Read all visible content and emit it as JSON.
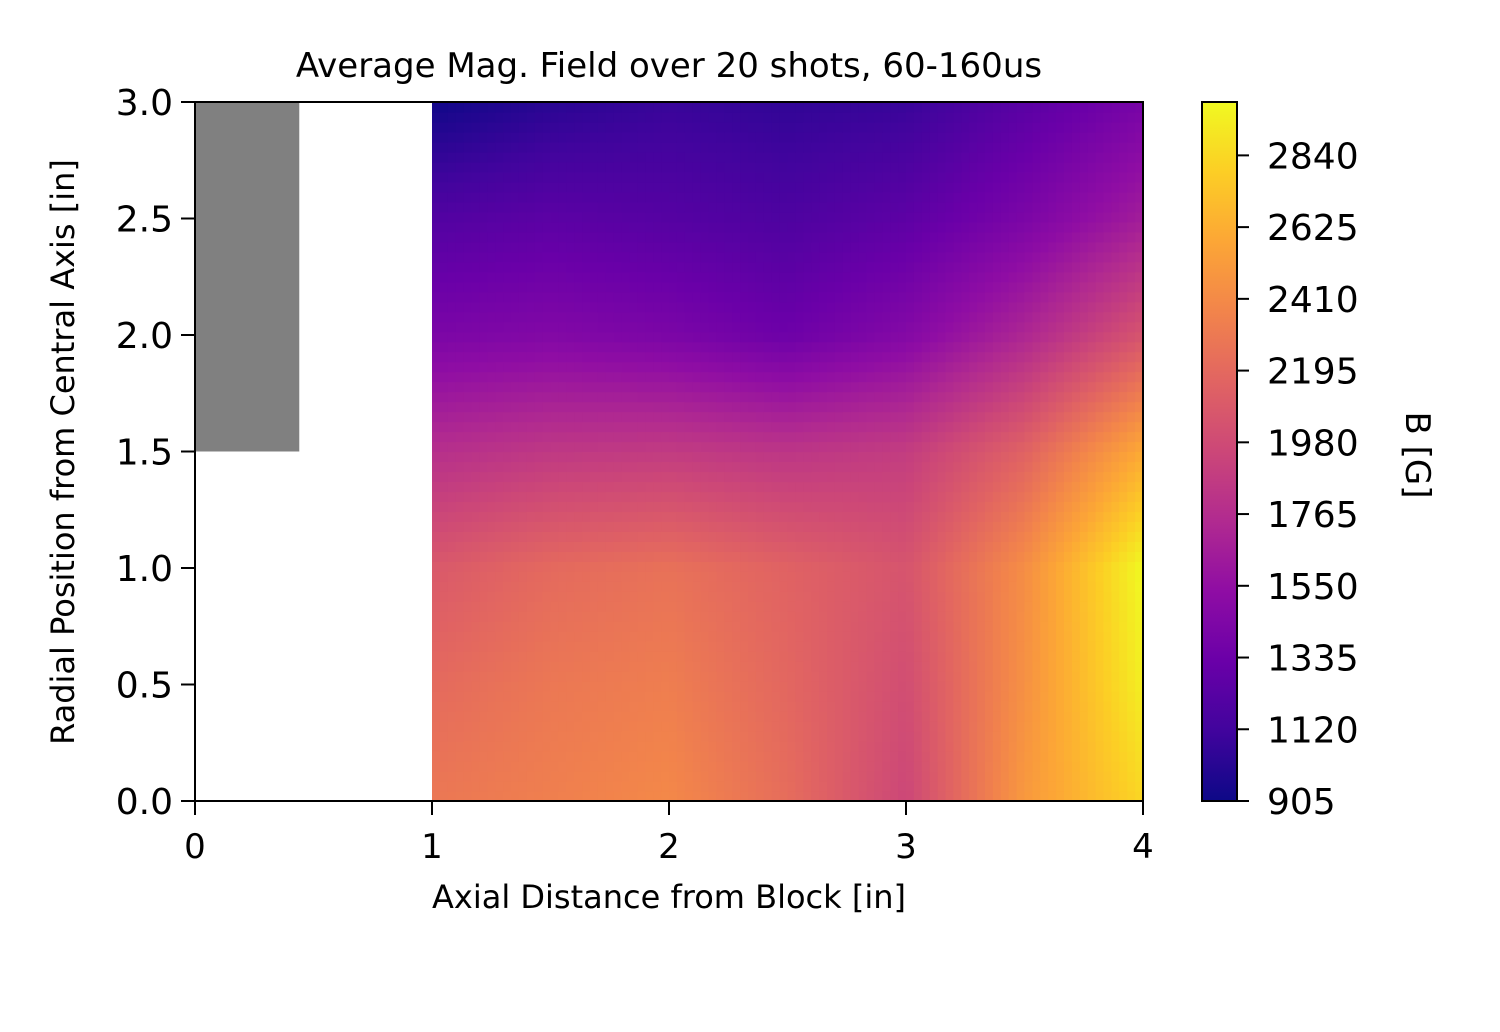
{
  "chart_data": {
    "type": "heatmap",
    "title": "Average Mag. Field over 20 shots, 60-160us",
    "xlabel": "Axial Distance from Block [in]",
    "ylabel": "Radial Position from Central Axis [in]",
    "colorbar_label": "B [G]",
    "xlim": [
      0,
      4
    ],
    "ylim": [
      0,
      3
    ],
    "x_ticks": [
      {
        "value": 0,
        "label": "0"
      },
      {
        "value": 1,
        "label": "1"
      },
      {
        "value": 2,
        "label": "2"
      },
      {
        "value": 3,
        "label": "3"
      },
      {
        "value": 4,
        "label": "4"
      }
    ],
    "y_ticks": [
      {
        "value": 0.0,
        "label": "0.0"
      },
      {
        "value": 0.5,
        "label": "0.5"
      },
      {
        "value": 1.0,
        "label": "1.0"
      },
      {
        "value": 1.5,
        "label": "1.5"
      },
      {
        "value": 2.0,
        "label": "2.0"
      },
      {
        "value": 2.5,
        "label": "2.5"
      },
      {
        "value": 3.0,
        "label": "3.0"
      }
    ],
    "colorbar_range": [
      905,
      3000
    ],
    "colorbar_ticks": [
      {
        "value": 905,
        "label": "905"
      },
      {
        "value": 1120,
        "label": "1120"
      },
      {
        "value": 1335,
        "label": "1335"
      },
      {
        "value": 1550,
        "label": "1550"
      },
      {
        "value": 1765,
        "label": "1765"
      },
      {
        "value": 1980,
        "label": "1980"
      },
      {
        "value": 2195,
        "label": "2195"
      },
      {
        "value": 2410,
        "label": "2410"
      },
      {
        "value": 2625,
        "label": "2625"
      },
      {
        "value": 2840,
        "label": "2840"
      }
    ],
    "colormap": "plasma",
    "block": {
      "x": [
        0,
        0.44
      ],
      "y": [
        1.5,
        3.0
      ],
      "color": "#808080"
    },
    "grid": false,
    "field": {
      "x": [
        1.0,
        1.5,
        2.0,
        2.5,
        3.0,
        3.5,
        4.0
      ],
      "y": [
        0.0,
        0.5,
        1.0,
        1.5,
        2.0,
        2.5,
        3.0
      ],
      "values": [
        [
          2290,
          2340,
          2400,
          2220,
          1950,
          2500,
          2830
        ],
        [
          2200,
          2290,
          2330,
          2180,
          2000,
          2450,
          2950
        ],
        [
          2080,
          2200,
          2250,
          2150,
          2050,
          2430,
          3000
        ],
        [
          1780,
          1850,
          1870,
          1830,
          1880,
          2150,
          2600
        ],
        [
          1420,
          1460,
          1420,
          1340,
          1470,
          1720,
          2050
        ],
        [
          1200,
          1250,
          1220,
          1180,
          1260,
          1420,
          1650
        ],
        [
          920,
          1020,
          1080,
          1050,
          1080,
          1240,
          1400
        ]
      ]
    }
  }
}
